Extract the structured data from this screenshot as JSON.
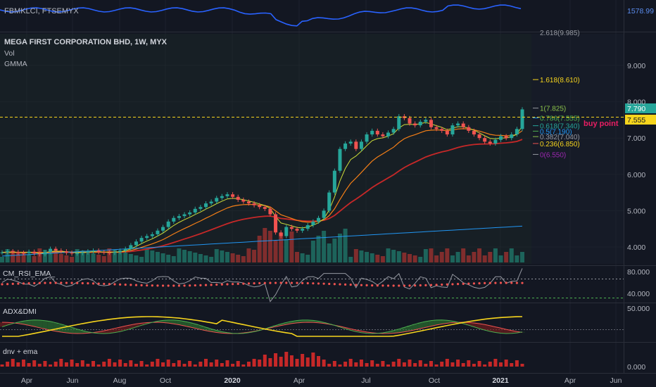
{
  "colors": {
    "bg": "#131722",
    "grid": "#1e222d",
    "up": "#26a69a",
    "down": "#ef5350",
    "text": "#b2b5be",
    "blue": "#2962ff",
    "yellow": "#f7d51d",
    "fib": "#ffeb3b"
  },
  "panes": {
    "compare": {
      "title": "FBMKLCI, FTSEMYX",
      "price_label": "1578.99"
    },
    "main": {
      "title": "MEGA FIRST CORPORATION BHD, 1W, MYX",
      "indicators": [
        "Vol",
        "GMMA"
      ],
      "price_label": "7.790",
      "level_label": "7.555",
      "level_text": "buy point",
      "fib_labels": [
        "2.618(9.985)",
        "1.618(8.610)",
        "1(7.825)",
        "0.786(7.555)",
        "0.618(7.340)",
        "0.5(7.190)",
        "0.382(7.040)",
        "0.236(6.850)",
        "0(6.550)"
      ],
      "y_ticks": [
        "9.000",
        "8.000",
        "7.000",
        "6.000",
        "5.000",
        "4.000"
      ]
    },
    "rsi": {
      "title": "CM_RSI_EMA_",
      "y_ticks": [
        "80.000",
        "40.000"
      ]
    },
    "adx": {
      "title": "ADX&DMI",
      "y_ticks": [
        "50.000"
      ]
    },
    "dnv": {
      "title": "dnv + ema",
      "y_ticks": [
        "0.000"
      ]
    }
  },
  "x_axis": {
    "labels": [
      "Apr",
      "Jun",
      "Aug",
      "Oct",
      "2020",
      "Apr",
      "Jul",
      "Oct",
      "2021",
      "Apr",
      "Jun"
    ]
  },
  "chart_data": {
    "type": "candlestick",
    "title": "MEGA FIRST CORPORATION BHD, 1W, MYX",
    "interval": "1W",
    "ylim": [
      3.7,
      9.9
    ],
    "x_label_dates": [
      "2019-04",
      "2019-06",
      "2019-08",
      "2019-10",
      "2020-01",
      "2020-04",
      "2020-07",
      "2020-10",
      "2021-01",
      "2021-04",
      "2021-06"
    ],
    "weekly_close": [
      3.85,
      3.88,
      3.86,
      3.84,
      3.83,
      3.87,
      3.82,
      3.8,
      3.86,
      3.95,
      3.9,
      3.88,
      3.84,
      3.82,
      3.83,
      3.85,
      3.88,
      3.9,
      3.86,
      3.85,
      3.84,
      3.86,
      3.9,
      3.95,
      4.05,
      4.15,
      4.25,
      4.3,
      4.35,
      4.45,
      4.55,
      4.7,
      4.8,
      4.85,
      4.9,
      4.95,
      5.05,
      5.1,
      5.2,
      5.25,
      5.35,
      5.4,
      5.45,
      5.38,
      5.3,
      5.25,
      5.2,
      5.15,
      5.1,
      5.05,
      4.9,
      4.4,
      4.3,
      4.55,
      4.5,
      4.45,
      4.5,
      4.6,
      4.7,
      4.8,
      5.0,
      5.5,
      6.1,
      6.7,
      6.85,
      6.9,
      6.7,
      6.9,
      7.1,
      7.2,
      7.1,
      7.05,
      7.15,
      7.25,
      7.6,
      7.55,
      7.4,
      7.35,
      7.45,
      7.5,
      7.3,
      7.25,
      7.2,
      7.1,
      7.35,
      7.4,
      7.3,
      7.2,
      7.1,
      7.0,
      6.9,
      6.85,
      6.95,
      7.05,
      7.0,
      7.1,
      7.25,
      7.79
    ],
    "fibonacci": [
      {
        "ratio": "0",
        "price": 6.55
      },
      {
        "ratio": "0.236",
        "price": 6.85
      },
      {
        "ratio": "0.382",
        "price": 7.04
      },
      {
        "ratio": "0.5",
        "price": 7.19
      },
      {
        "ratio": "0.618",
        "price": 7.34
      },
      {
        "ratio": "0.786",
        "price": 7.555
      },
      {
        "ratio": "1",
        "price": 7.825
      },
      {
        "ratio": "1.618",
        "price": 8.61
      },
      {
        "ratio": "2.618",
        "price": 9.985
      }
    ],
    "horizontal_line": {
      "price": 7.555,
      "label": "buy point"
    },
    "last_price": 7.79,
    "compare_symbol": {
      "name": "FBMKLCI, FTSEMYX",
      "last": 1578.99
    },
    "indicators": [
      "Vol",
      "GMMA",
      "CM_RSI_EMA_",
      "ADX&DMI",
      "dnv + ema"
    ]
  }
}
